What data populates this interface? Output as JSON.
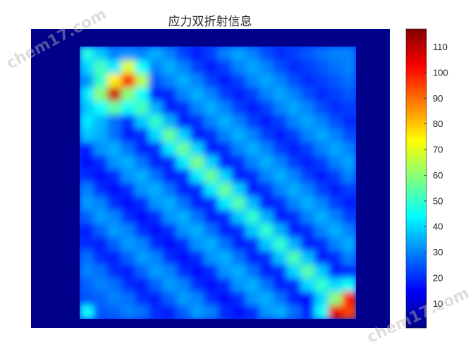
{
  "watermark": {
    "text": "chem17.com"
  },
  "colors": {
    "frame": "#00008a",
    "watermark": "#b8b8b8",
    "text": "#262626"
  },
  "chart_data": {
    "type": "heatmap",
    "title": "应力双折射信息",
    "colormap": "jet",
    "clim": [
      0.5,
      117
    ],
    "grid": false,
    "colorbar": {
      "placement": "right",
      "ticks": [
        10,
        20,
        30,
        40,
        50,
        60,
        70,
        80,
        90,
        100,
        110
      ]
    },
    "values": [
      [
        48,
        38,
        30,
        32,
        30,
        35,
        30,
        22,
        18,
        22,
        30,
        34,
        30,
        24,
        20,
        22,
        25,
        28,
        30,
        30
      ],
      [
        40,
        52,
        42,
        70,
        45,
        30,
        35,
        30,
        22,
        18,
        22,
        30,
        34,
        30,
        24,
        20,
        22,
        25,
        28,
        30
      ],
      [
        32,
        50,
        75,
        100,
        65,
        25,
        30,
        35,
        30,
        22,
        18,
        22,
        30,
        34,
        30,
        24,
        20,
        22,
        25,
        28
      ],
      [
        42,
        60,
        108,
        60,
        45,
        18,
        20,
        30,
        35,
        30,
        22,
        18,
        22,
        30,
        34,
        30,
        24,
        20,
        22,
        25
      ],
      [
        38,
        45,
        55,
        45,
        52,
        35,
        18,
        20,
        30,
        35,
        30,
        22,
        18,
        22,
        30,
        34,
        30,
        24,
        20,
        22
      ],
      [
        42,
        36,
        28,
        20,
        38,
        50,
        35,
        18,
        20,
        30,
        35,
        30,
        22,
        18,
        22,
        30,
        34,
        30,
        24,
        20
      ],
      [
        38,
        35,
        28,
        18,
        20,
        40,
        56,
        39,
        18,
        20,
        30,
        35,
        30,
        22,
        18,
        22,
        30,
        34,
        30,
        24
      ],
      [
        18,
        32,
        35,
        28,
        18,
        20,
        42,
        56,
        39,
        18,
        20,
        30,
        35,
        30,
        22,
        18,
        22,
        30,
        34,
        30
      ],
      [
        16,
        20,
        32,
        35,
        28,
        18,
        20,
        42,
        58,
        39,
        18,
        20,
        30,
        35,
        30,
        22,
        18,
        22,
        30,
        34
      ],
      [
        20,
        16,
        20,
        32,
        35,
        28,
        18,
        20,
        42,
        56,
        39,
        18,
        20,
        30,
        35,
        30,
        22,
        18,
        22,
        30
      ],
      [
        30,
        20,
        16,
        20,
        32,
        35,
        28,
        18,
        20,
        42,
        56,
        39,
        18,
        20,
        30,
        35,
        30,
        22,
        18,
        22
      ],
      [
        33,
        30,
        20,
        16,
        20,
        32,
        35,
        28,
        18,
        20,
        42,
        54,
        36,
        18,
        20,
        30,
        35,
        30,
        22,
        18
      ],
      [
        26,
        33,
        30,
        20,
        16,
        20,
        32,
        35,
        28,
        18,
        20,
        38,
        50,
        35,
        18,
        20,
        30,
        35,
        30,
        22
      ],
      [
        18,
        26,
        33,
        30,
        20,
        16,
        20,
        32,
        35,
        28,
        18,
        20,
        38,
        50,
        35,
        18,
        20,
        30,
        35,
        30
      ],
      [
        20,
        18,
        26,
        33,
        30,
        20,
        16,
        20,
        32,
        35,
        28,
        18,
        20,
        38,
        50,
        35,
        18,
        20,
        30,
        35
      ],
      [
        28,
        20,
        18,
        26,
        33,
        30,
        20,
        16,
        20,
        32,
        35,
        28,
        18,
        20,
        38,
        53,
        37,
        18,
        20,
        30
      ],
      [
        30,
        28,
        20,
        18,
        26,
        33,
        30,
        20,
        16,
        20,
        32,
        35,
        28,
        18,
        20,
        40,
        54,
        38,
        18,
        20
      ],
      [
        26,
        30,
        28,
        20,
        18,
        26,
        33,
        30,
        20,
        16,
        20,
        32,
        35,
        28,
        18,
        20,
        40,
        50,
        40,
        45
      ],
      [
        25,
        26,
        30,
        28,
        20,
        18,
        26,
        33,
        30,
        20,
        16,
        20,
        32,
        35,
        28,
        18,
        15,
        40,
        60,
        100
      ],
      [
        45,
        25,
        26,
        30,
        28,
        20,
        18,
        26,
        33,
        30,
        20,
        16,
        20,
        32,
        35,
        28,
        18,
        45,
        105,
        95
      ]
    ]
  }
}
